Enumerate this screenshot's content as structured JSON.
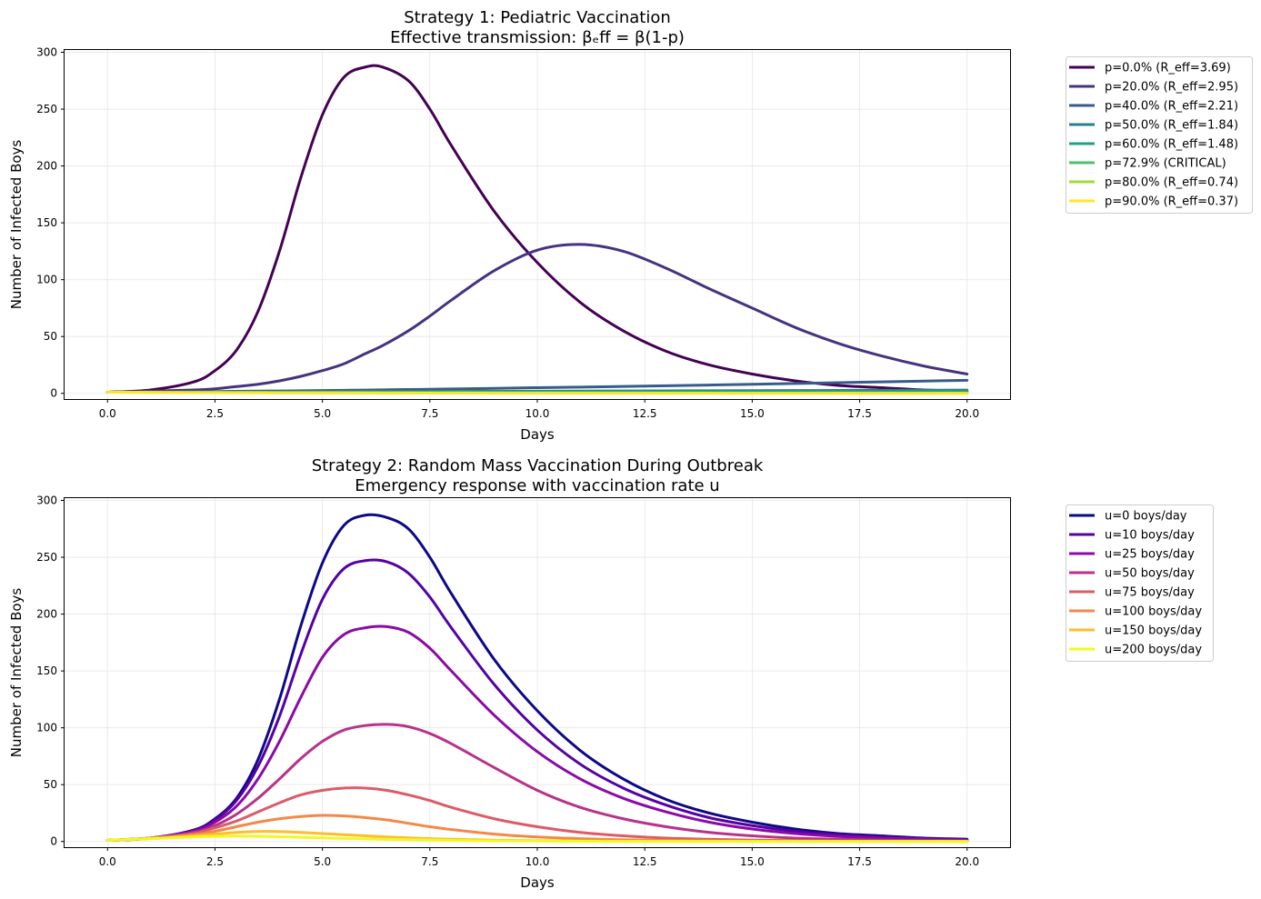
{
  "chart_data": [
    {
      "type": "line",
      "title": "Strategy 1: Pediatric Vaccination",
      "subtitle": "Effective transmission: βₑff = β(1-p)",
      "xlabel": "Days",
      "ylabel": "Number of Infected Boys",
      "xlim": [
        -1,
        21
      ],
      "ylim": [
        -5,
        302
      ],
      "xticks": [
        "0.0",
        "2.5",
        "5.0",
        "7.5",
        "10.0",
        "12.5",
        "15.0",
        "17.5",
        "20.0"
      ],
      "yticks": [
        "0",
        "50",
        "100",
        "150",
        "200",
        "250",
        "300"
      ],
      "grid": true,
      "legend_position": "outside-right",
      "x": [
        0,
        1,
        2,
        2.5,
        3,
        3.5,
        4,
        4.5,
        5,
        5.5,
        6,
        6.4,
        7,
        7.5,
        8,
        9,
        10,
        11,
        12,
        13,
        14,
        15,
        16,
        17,
        18,
        19,
        20
      ],
      "series": [
        {
          "name": "p=0.0% (R_eff=3.69)",
          "color": "#440154",
          "values": [
            1,
            3,
            10,
            20,
            38,
            72,
            125,
            190,
            245,
            278,
            287,
            287,
            275,
            250,
            218,
            160,
            115,
            80,
            55,
            37,
            25,
            17,
            11,
            7,
            5,
            3,
            2
          ]
        },
        {
          "name": "p=20.0% (R_eff=2.95)",
          "color": "#46337e",
          "values": [
            1,
            2,
            3,
            4,
            6,
            8,
            11,
            15,
            20,
            26,
            35,
            42,
            55,
            68,
            82,
            108,
            126,
            131,
            125,
            110,
            92,
            75,
            58,
            44,
            33,
            24,
            17
          ]
        },
        {
          "name": "p=40.0% (R_eff=2.21)",
          "color": "#365c8d",
          "values": [
            1,
            1.2,
            1.5,
            1.6,
            1.8,
            2,
            2.1,
            2.3,
            2.5,
            2.7,
            2.9,
            3.1,
            3.4,
            3.6,
            3.9,
            4.4,
            5,
            5.5,
            6.1,
            6.7,
            7.3,
            8,
            8.7,
            9.4,
            10.1,
            10.8,
            11.5
          ]
        },
        {
          "name": "p=50.0% (R_eff=1.84)",
          "color": "#277f8e",
          "values": [
            1,
            1.05,
            1.1,
            1.15,
            1.2,
            1.25,
            1.3,
            1.35,
            1.4,
            1.45,
            1.5,
            1.55,
            1.6,
            1.65,
            1.7,
            1.8,
            1.9,
            2,
            2.1,
            2.2,
            2.3,
            2.4,
            2.5,
            2.6,
            2.7,
            2.8,
            2.9
          ]
        },
        {
          "name": "p=60.0% (R_eff=1.48)",
          "color": "#1fa187",
          "values": [
            1,
            1,
            1.05,
            1.05,
            1.1,
            1.1,
            1.1,
            1.15,
            1.15,
            1.15,
            1.2,
            1.2,
            1.2,
            1.25,
            1.25,
            1.3,
            1.3,
            1.35,
            1.35,
            1.4,
            1.4,
            1.45,
            1.45,
            1.5,
            1.5,
            1.55,
            1.55
          ]
        },
        {
          "name": "p=72.9% (CRITICAL)",
          "color": "#4ac16d",
          "values": [
            1,
            0.95,
            0.9,
            0.88,
            0.86,
            0.84,
            0.82,
            0.8,
            0.78,
            0.76,
            0.74,
            0.72,
            0.7,
            0.68,
            0.66,
            0.62,
            0.58,
            0.55,
            0.52,
            0.49,
            0.46,
            0.43,
            0.4,
            0.38,
            0.36,
            0.34,
            0.32
          ]
        },
        {
          "name": "p=80.0% (R_eff=0.74)",
          "color": "#a0da39",
          "values": [
            1,
            0.9,
            0.8,
            0.76,
            0.72,
            0.68,
            0.64,
            0.6,
            0.57,
            0.54,
            0.51,
            0.48,
            0.45,
            0.42,
            0.4,
            0.36,
            0.32,
            0.28,
            0.25,
            0.22,
            0.2,
            0.18,
            0.16,
            0.14,
            0.12,
            0.11,
            0.1
          ]
        },
        {
          "name": "p=90.0% (R_eff=0.37)",
          "color": "#fde725",
          "values": [
            1,
            0.8,
            0.64,
            0.57,
            0.51,
            0.46,
            0.41,
            0.37,
            0.33,
            0.3,
            0.27,
            0.24,
            0.21,
            0.19,
            0.17,
            0.14,
            0.11,
            0.09,
            0.07,
            0.06,
            0.05,
            0.04,
            0.03,
            0.03,
            0.02,
            0.02,
            0.02
          ]
        }
      ]
    },
    {
      "type": "line",
      "title": "Strategy 2: Random Mass Vaccination During Outbreak",
      "subtitle": "Emergency response with vaccination rate u",
      "xlabel": "Days",
      "ylabel": "Number of Infected Boys",
      "xlim": [
        -1,
        21
      ],
      "ylim": [
        -5,
        302
      ],
      "xticks": [
        "0.0",
        "2.5",
        "5.0",
        "7.5",
        "10.0",
        "12.5",
        "15.0",
        "17.5",
        "20.0"
      ],
      "yticks": [
        "0",
        "50",
        "100",
        "150",
        "200",
        "250",
        "300"
      ],
      "grid": true,
      "legend_position": "outside-right",
      "x": [
        0,
        1,
        2,
        2.5,
        3,
        3.5,
        4,
        4.5,
        5,
        5.5,
        6,
        6.5,
        7,
        7.5,
        8,
        9,
        10,
        11,
        12,
        13,
        14,
        15,
        16,
        17,
        18,
        19,
        20
      ],
      "series": [
        {
          "name": "u=0 boys/day",
          "color": "#0d0887",
          "values": [
            1,
            3,
            10,
            20,
            38,
            72,
            125,
            190,
            245,
            278,
            287,
            285,
            275,
            250,
            218,
            160,
            115,
            80,
            55,
            37,
            25,
            17,
            11,
            7,
            5,
            3,
            2
          ]
        },
        {
          "name": "u=10 boys/day",
          "color": "#5402a3",
          "values": [
            1,
            3,
            9.5,
            19,
            36,
            66,
            110,
            165,
            213,
            240,
            247,
            246,
            236,
            215,
            188,
            138,
            98,
            68,
            47,
            32,
            21,
            14,
            9,
            6,
            4,
            2.5,
            1.5
          ]
        },
        {
          "name": "u=25 boys/day",
          "color": "#8b0aa5",
          "values": [
            1,
            3,
            9,
            17,
            31,
            55,
            88,
            127,
            162,
            182,
            188,
            189,
            184,
            170,
            150,
            111,
            79,
            55,
            38,
            26,
            17,
            11,
            7,
            4.5,
            3,
            2,
            1
          ]
        },
        {
          "name": "u=50 boys/day",
          "color": "#b83289",
          "values": [
            1,
            3,
            8,
            14,
            24,
            38,
            55,
            73,
            88,
            98,
            102,
            103,
            101,
            95,
            86,
            65,
            45,
            30,
            20,
            13,
            8,
            5,
            3,
            2,
            1.2,
            0.8,
            0.5
          ]
        },
        {
          "name": "u=75 boys/day",
          "color": "#db5c68",
          "values": [
            1,
            3,
            7,
            12,
            18,
            26,
            34,
            41,
            45,
            47,
            47,
            45,
            41,
            36,
            30,
            20,
            13,
            8,
            5,
            3,
            2,
            1.2,
            0.8,
            0.5,
            0.3,
            0.2,
            0.1
          ]
        },
        {
          "name": "u=100 boys/day",
          "color": "#f48849",
          "values": [
            1,
            3,
            6,
            9,
            13,
            17,
            20,
            22,
            23,
            22.5,
            21,
            19,
            16,
            13,
            10.5,
            6.5,
            4,
            2.5,
            1.5,
            1,
            0.6,
            0.4,
            0.3,
            0.2,
            0.1,
            0.1,
            0.1
          ]
        },
        {
          "name": "u=150 boys/day",
          "color": "#febd2a",
          "values": [
            1,
            2.5,
            5,
            6.5,
            8,
            8.8,
            8.7,
            8,
            7,
            6,
            5,
            4,
            3.2,
            2.5,
            2,
            1.2,
            0.7,
            0.4,
            0.2,
            0.1,
            0.1,
            0.05,
            0.05,
            0,
            0,
            0,
            0
          ]
        },
        {
          "name": "u=200 boys/day",
          "color": "#f0f921",
          "values": [
            1,
            2.5,
            4,
            4.5,
            4.8,
            4.6,
            4.2,
            3.7,
            3.2,
            2.7,
            2.3,
            1.9,
            1.6,
            1.3,
            1,
            0.6,
            0.35,
            0.2,
            0.1,
            0.05,
            0.05,
            0,
            0,
            0,
            0,
            0,
            0
          ]
        }
      ]
    }
  ]
}
